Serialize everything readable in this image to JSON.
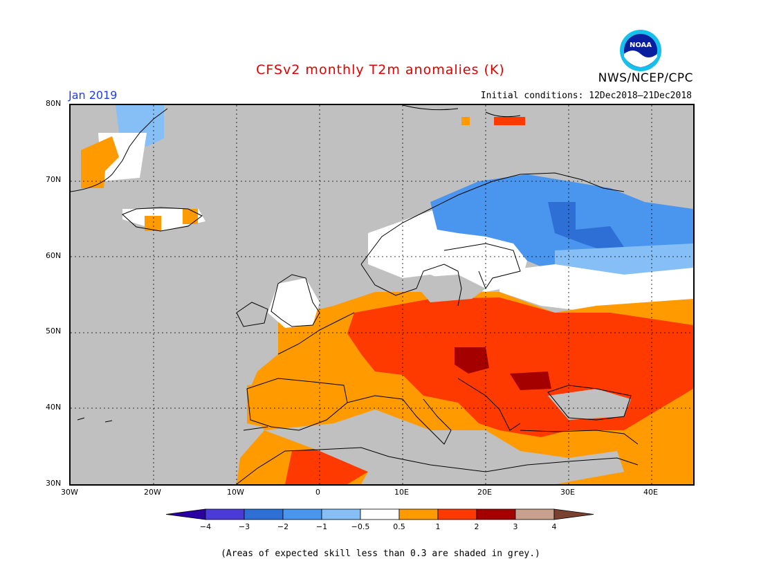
{
  "header": {
    "title": "CFSv2 monthly T2m anomalies (K)",
    "agency": "NWS/NCEP/CPC",
    "period": "Jan 2019",
    "initial_conditions": "Initial conditions: 12Dec2018–21Dec2018",
    "logo_text": "NOAA"
  },
  "map": {
    "lon_labels": [
      "30W",
      "20W",
      "10W",
      "0",
      "10E",
      "20E",
      "30E",
      "40E"
    ],
    "lat_labels": [
      "80N",
      "70N",
      "60N",
      "50N",
      "40N",
      "30N"
    ],
    "lon_range": [
      -30,
      45
    ],
    "lat_range": [
      30,
      80
    ],
    "grid": true
  },
  "colorbar": {
    "ticks": [
      "−4",
      "−3",
      "−2",
      "−1",
      "−0.5",
      "0.5",
      "1",
      "2",
      "3",
      "4"
    ],
    "colors": [
      "#2b00a0",
      "#4a3bd6",
      "#2e6fd6",
      "#4a96ee",
      "#86bff5",
      "#ffffff",
      "#ff9b00",
      "#ff3a00",
      "#a50000",
      "#c9a08e",
      "#7a4030"
    ]
  },
  "footnote": "(Areas of expected skill less than 0.3 are shaded in grey.)",
  "colors": {
    "no_skill": "#c0c0c0",
    "title": "#e00000",
    "period": "#1d3cf0"
  }
}
